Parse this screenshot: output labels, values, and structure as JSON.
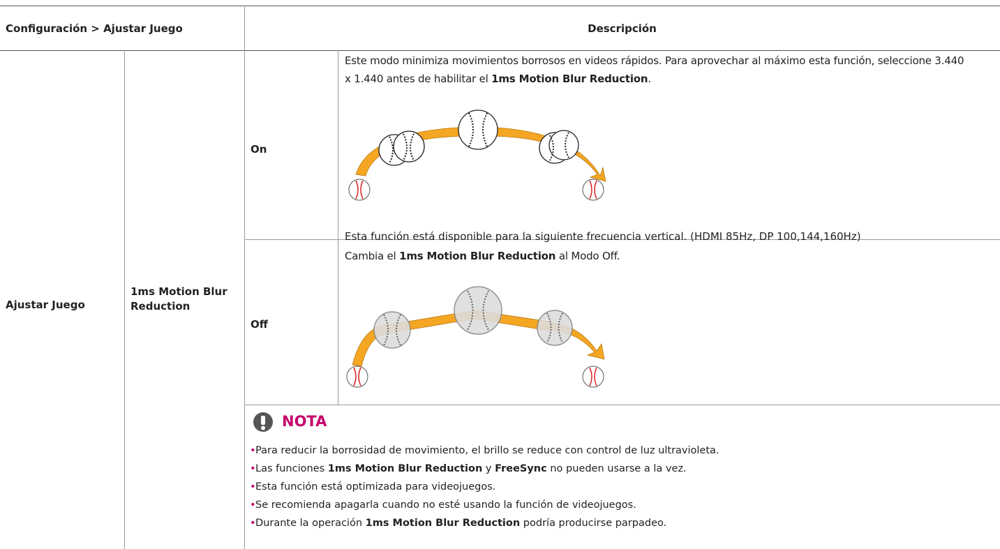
{
  "header": {
    "left": "Configuración > Ajustar Juego",
    "right": "Descripción"
  },
  "row": {
    "menu": "Ajustar Juego",
    "item": "1ms Motion Blur Reduction"
  },
  "options": [
    {
      "label": "On",
      "description": [
        "Este modo minimiza movimientos borrosos en videos rápidos. Para aprovechar al máximo esta función, seleccione 3.440 x 1.440 antes de habilitar el ",
        "1ms Motion Blur Reduction",
        "."
      ],
      "footnote": "Esta función está disponible para la siguiente frecuencia vertical. (HDMI 85Hz, DP 100,144,160Hz)"
    },
    {
      "label": "Off",
      "description": [
        "Cambia el ",
        "1ms Motion Blur Reduction",
        " al Modo Off."
      ]
    }
  ],
  "note": {
    "title": "NOTA",
    "items": [
      [
        "Para reducir la borrosidad de movimiento, el brillo se reduce con control de luz ultravioleta."
      ],
      [
        "Las funciones ",
        "1ms Motion Blur Reduction",
        " y ",
        "FreeSync",
        " no pueden usarse a la vez."
      ],
      [
        "Esta función está optimizada para videojuegos."
      ],
      [
        "Se recomienda apagarla cuando no esté usando la función de videojuegos."
      ],
      [
        "Durante la operación ",
        "1ms Motion Blur Reduction",
        " podría producirse parpadeo."
      ]
    ]
  }
}
